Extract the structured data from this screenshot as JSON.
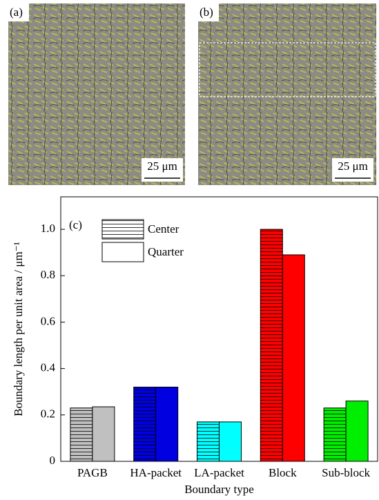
{
  "panels": [
    {
      "label": "(a)",
      "scale_bar": "25 μm"
    },
    {
      "label": "(b)",
      "scale_bar": "25 μm"
    }
  ],
  "chart_data": {
    "type": "bar",
    "panel_label": "(c)",
    "x_label": "Boundary type",
    "y_label": "Boundary length per unit area / μm⁻¹",
    "categories": [
      "PAGB",
      "HA-packet",
      "LA-packet",
      "Block",
      "Sub-block"
    ],
    "category_colors": [
      "#c0c0c0",
      "#0000e0",
      "#00ffff",
      "#ff0000",
      "#00ee00"
    ],
    "series": [
      {
        "name": "Center",
        "hatch": true,
        "values": [
          0.23,
          0.32,
          0.17,
          1.0,
          0.23
        ]
      },
      {
        "name": "Quarter",
        "hatch": false,
        "values": [
          0.235,
          0.32,
          0.17,
          0.89,
          0.26
        ]
      }
    ],
    "ylim": [
      0,
      1.14
    ],
    "yticks": [
      0,
      0.2,
      0.4,
      0.6,
      0.8,
      {
        "value": 1,
        "label": "1.0"
      }
    ],
    "legend": "upper left"
  }
}
